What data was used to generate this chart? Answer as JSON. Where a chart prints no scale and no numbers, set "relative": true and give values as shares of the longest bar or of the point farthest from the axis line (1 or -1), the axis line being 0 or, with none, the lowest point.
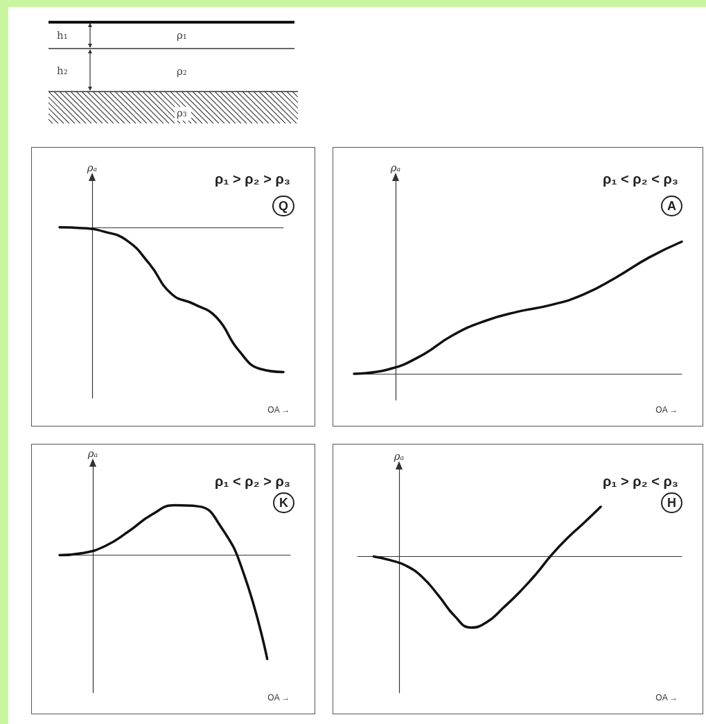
{
  "chart_data": [
    {
      "type": "other",
      "annotations": [
        "h₁",
        "ρ₁",
        "h₂",
        "ρ₂",
        "ρ₃"
      ]
    },
    {
      "type": "line",
      "title": "ρ₁ > ρ₂ > ρ₃",
      "subtitle": "Q",
      "xlabel": "OA →",
      "ylabel": "ρₐ",
      "relative": true,
      "color": "#111111",
      "categories": [
        null,
        null,
        null,
        null,
        null,
        null,
        null,
        null,
        null,
        null,
        null
      ],
      "values": [
        0,
        -0.005,
        -0.03,
        -0.09,
        -0.25,
        -0.46,
        -0.53,
        -0.62,
        -0.85,
        -0.98,
        -1
      ]
    },
    {
      "type": "line",
      "title": "ρ₁ < ρ₂ < ρ₃",
      "subtitle": "A",
      "xlabel": "OA →",
      "ylabel": "ρₐ",
      "relative": true,
      "color": "#111111",
      "categories": [
        null,
        null,
        null,
        null,
        null,
        null,
        null,
        null,
        null,
        null,
        null
      ],
      "values": [
        0,
        0.03,
        0.13,
        0.29,
        0.4,
        0.47,
        0.52,
        0.6,
        0.73,
        0.88,
        1
      ]
    },
    {
      "type": "line",
      "title": "ρ₁ < ρ₂ > ρ₃",
      "subtitle": "K",
      "xlabel": "OA →",
      "ylabel": "ρₐ",
      "relative": true,
      "color": "#111111",
      "categories": [
        null,
        null,
        null,
        null,
        null,
        null,
        null,
        null,
        null,
        null,
        null
      ],
      "values": [
        0,
        0.02,
        0.09,
        0.23,
        0.39,
        0.48,
        0.47,
        0.27,
        -0.19,
        -1,
        null
      ]
    },
    {
      "type": "line",
      "title": "ρ₁ > ρ₂ < ρ₃",
      "subtitle": "H",
      "xlabel": "OA →",
      "ylabel": "ρₐ",
      "relative": true,
      "color": "#111111",
      "categories": [
        null,
        null,
        null,
        null,
        null,
        null,
        null,
        null,
        null,
        null,
        null,
        null,
        null,
        null,
        null,
        null,
        null,
        null,
        null,
        null,
        null
      ],
      "values": [
        null,
        0,
        -0.05,
        -0.13,
        -0.29,
        -0.55,
        -0.84,
        -1,
        -0.92,
        -0.72,
        -0.5,
        -0.25,
        0.03,
        0.27,
        0.48,
        0.7,
        null,
        null,
        null,
        null,
        null
      ]
    }
  ]
}
